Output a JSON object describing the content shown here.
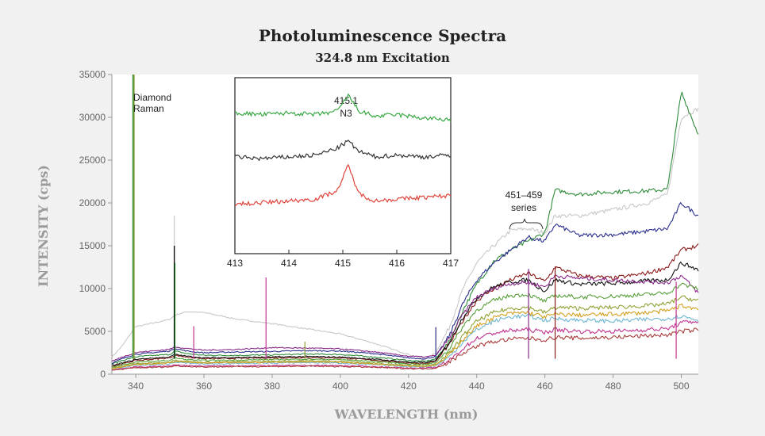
{
  "chart_data": {
    "type": "line",
    "title": "Photoluminescence Spectra",
    "subtitle": "324.8 nm Excitation",
    "xlabel": "WAVELENGTH (nm)",
    "ylabel": "INTENSITY (cps)",
    "xlim": [
      333,
      505
    ],
    "ylim": [
      0,
      35000
    ],
    "x_ticks": [
      340,
      360,
      380,
      400,
      420,
      440,
      460,
      480,
      500
    ],
    "y_ticks": [
      0,
      5000,
      10000,
      15000,
      20000,
      25000,
      30000,
      35000
    ],
    "grid": false,
    "legend": "none",
    "annotations": {
      "raman": [
        "Diamond",
        "Raman"
      ],
      "series_label": [
        "451–459",
        "series"
      ]
    },
    "x": [
      333,
      336,
      339,
      339.5,
      342,
      350,
      351.5,
      355,
      360,
      370,
      380,
      390,
      400,
      410,
      420,
      425,
      428,
      432,
      436,
      440,
      445,
      450,
      455,
      460,
      463,
      470,
      480,
      490,
      496,
      500,
      505
    ],
    "series": [
      {
        "color": "#c8c8c8",
        "values": [
          2000,
          3300,
          5000,
          5500,
          5700,
          6400,
          6900,
          7300,
          7200,
          6400,
          5900,
          5300,
          4700,
          3600,
          2300,
          1800,
          2500,
          5500,
          10000,
          13000,
          15000,
          16800,
          17000,
          16500,
          18500,
          18500,
          19200,
          20000,
          21000,
          30000,
          31000
        ]
      },
      {
        "color": "#2e8b3a",
        "values": [
          1200,
          1600,
          1900,
          2000,
          2100,
          2300,
          2700,
          2400,
          2200,
          2200,
          2250,
          2350,
          2300,
          2000,
          1600,
          1500,
          1800,
          3800,
          7500,
          10500,
          13200,
          14500,
          15500,
          16500,
          21500,
          21000,
          21300,
          21400,
          21600,
          33000,
          28000
        ]
      },
      {
        "color": "#2a2f8c",
        "values": [
          1300,
          1800,
          2200,
          2300,
          2400,
          2700,
          3000,
          2700,
          2500,
          2600,
          2650,
          2750,
          2700,
          2400,
          1900,
          1800,
          2100,
          4500,
          8300,
          11000,
          13000,
          14500,
          16000,
          15500,
          17500,
          16200,
          16300,
          16700,
          17000,
          20000,
          18500
        ]
      },
      {
        "color": "#8b1a1a",
        "values": [
          900,
          1200,
          1500,
          1600,
          1650,
          1900,
          2200,
          2000,
          1800,
          1850,
          1900,
          1950,
          1900,
          1650,
          1300,
          1250,
          1500,
          3500,
          6300,
          8600,
          10000,
          11000,
          11800,
          10800,
          12500,
          11500,
          11200,
          11800,
          12500,
          14500,
          15000
        ]
      },
      {
        "color": "#111111",
        "values": [
          1000,
          1300,
          1600,
          1700,
          1800,
          2000,
          2300,
          2100,
          1900,
          1950,
          2000,
          2050,
          2000,
          1750,
          1400,
          1350,
          1600,
          3700,
          6700,
          8900,
          10200,
          10800,
          11000,
          9700,
          11000,
          10500,
          10600,
          10900,
          11000,
          13000,
          12200
        ]
      },
      {
        "color": "#8a2a8a",
        "values": [
          1500,
          2000,
          2400,
          2500,
          2600,
          2900,
          3200,
          3000,
          2800,
          2900,
          3100,
          3050,
          2950,
          2600,
          2100,
          2000,
          2200,
          4200,
          7000,
          9000,
          10000,
          10600,
          10700,
          10200,
          11500,
          11200,
          11000,
          10800,
          10700,
          11500,
          9500
        ]
      },
      {
        "color": "#5aa03c",
        "values": [
          800,
          1100,
          1300,
          1400,
          1450,
          1600,
          1900,
          1700,
          1600,
          1650,
          1700,
          1750,
          1700,
          1500,
          1200,
          1150,
          1350,
          3000,
          5600,
          7500,
          8600,
          9200,
          9300,
          8500,
          9200,
          9000,
          9100,
          9300,
          9500,
          10500,
          10000
        ]
      },
      {
        "color": "#8fa236",
        "values": [
          700,
          950,
          1150,
          1200,
          1250,
          1400,
          1650,
          1500,
          1400,
          1450,
          1500,
          1550,
          1500,
          1300,
          1050,
          1000,
          1150,
          2400,
          4500,
          6200,
          7200,
          7700,
          7800,
          7200,
          7800,
          7700,
          7800,
          8000,
          8200,
          9000,
          8600
        ]
      },
      {
        "color": "#6fb6d0",
        "values": [
          600,
          800,
          950,
          1000,
          1050,
          1200,
          1400,
          1300,
          1200,
          1250,
          1300,
          1350,
          1300,
          1100,
          900,
          850,
          1000,
          2000,
          3800,
          5200,
          6200,
          6700,
          6800,
          6300,
          6500,
          6300,
          6200,
          6400,
          6500,
          6800,
          6300
        ]
      },
      {
        "color": "#d3a020",
        "values": [
          650,
          880,
          1050,
          1100,
          1150,
          1300,
          1500,
          1400,
          1300,
          1350,
          1400,
          1450,
          1400,
          1200,
          980,
          930,
          1080,
          2200,
          4100,
          5600,
          6600,
          7100,
          7200,
          6700,
          7000,
          6900,
          7000,
          7200,
          7400,
          8000,
          7600
        ]
      },
      {
        "color": "#c0338f",
        "values": [
          500,
          650,
          780,
          820,
          850,
          950,
          1100,
          1000,
          950,
          980,
          1000,
          1020,
          1000,
          880,
          720,
          700,
          800,
          1600,
          3000,
          4200,
          4800,
          5100,
          5200,
          4900,
          5200,
          5000,
          5000,
          5200,
          5300,
          6000,
          6200
        ]
      },
      {
        "color": "#aa3c3c",
        "values": [
          450,
          580,
          700,
          740,
          760,
          850,
          980,
          900,
          850,
          880,
          900,
          920,
          900,
          800,
          650,
          630,
          720,
          1400,
          2500,
          3300,
          3800,
          4100,
          4200,
          4000,
          4300,
          4200,
          4300,
          4500,
          4600,
          5000,
          5200
        ]
      }
    ],
    "inset": {
      "xlim": [
        413,
        417
      ],
      "x_ticks": [
        413,
        414,
        415,
        416,
        417
      ],
      "peak_label": [
        "415.1",
        "N3"
      ],
      "x": [
        413,
        413.5,
        414,
        414.5,
        414.9,
        415.1,
        415.3,
        415.6,
        416,
        416.5,
        417
      ],
      "series": [
        {
          "color": "#3aa845",
          "values": [
            0.8,
            0.79,
            0.8,
            0.79,
            0.81,
            0.9,
            0.81,
            0.78,
            0.79,
            0.77,
            0.76
          ]
        },
        {
          "color": "#333333",
          "values": [
            0.55,
            0.54,
            0.55,
            0.56,
            0.6,
            0.64,
            0.58,
            0.55,
            0.56,
            0.55,
            0.56
          ]
        },
        {
          "color": "#e0433a",
          "values": [
            0.28,
            0.29,
            0.3,
            0.31,
            0.36,
            0.5,
            0.34,
            0.3,
            0.31,
            0.32,
            0.33
          ]
        }
      ]
    }
  }
}
